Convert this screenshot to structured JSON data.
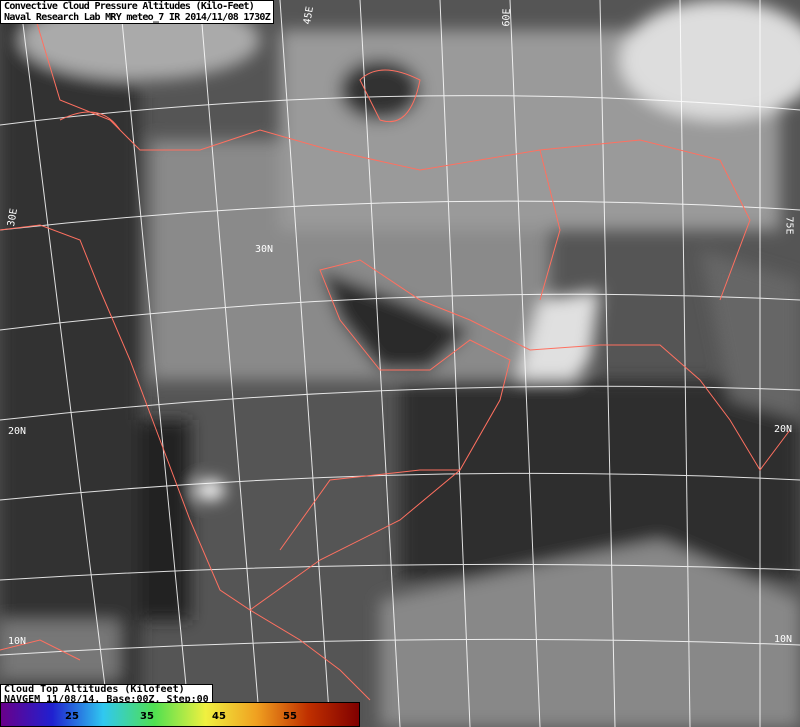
{
  "header": {
    "line1": "Convective Cloud Pressure Altitudes (Kilo-Feet)",
    "line2": "Naval Research Lab MRY meteo_7 IR 2014/11/08 1730Z"
  },
  "legend": {
    "title": "Cloud Top Altitudes (Kilofeet)",
    "subtitle": "NAVGEM 11/08/14, Base:00Z, Step:00",
    "ticks": [
      "25",
      "35",
      "45",
      "55"
    ],
    "colors": [
      "#6a008a",
      "#2020d0",
      "#30c8f0",
      "#50e050",
      "#f0f040",
      "#f0a020",
      "#c03000",
      "#800000"
    ]
  },
  "map": {
    "gridline_color": "#ffffff",
    "border_color": "#ff7060",
    "labels": {
      "lon45": "45E",
      "lon60": "60E",
      "lon30": "30E",
      "lon75": "75E",
      "lat30": "30N",
      "lat20_w": "20N",
      "lat20_e": "20N",
      "lat10_w": "10N",
      "lat10_e": "10N"
    }
  }
}
